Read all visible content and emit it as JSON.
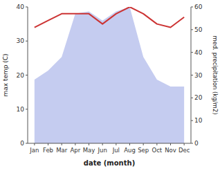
{
  "chart_data": {
    "type": "line",
    "xlabel": "date (month)",
    "ylabel": "max temp (C)",
    "y2label": "med. precipitation (kg/m2)",
    "categories": [
      "Jan",
      "Feb",
      "Mar",
      "Apr",
      "May",
      "Jun",
      "Jul",
      "Aug",
      "Sep",
      "Oct",
      "Nov",
      "Dec"
    ],
    "series": [
      {
        "type": "area",
        "color": "#c5ccf0",
        "axis": "y2",
        "values": [
          28,
          32,
          38,
          57,
          58,
          54,
          58,
          60,
          38,
          28,
          25,
          25
        ]
      },
      {
        "type": "line",
        "color": "#cc3333",
        "values": [
          34,
          36,
          38,
          38,
          38,
          35,
          38,
          40,
          38,
          35,
          34,
          37
        ]
      }
    ],
    "ylim": [
      0,
      40
    ],
    "yticks": [
      0,
      10,
      20,
      30,
      40
    ],
    "y2lim": [
      0,
      60
    ],
    "y2ticks": [
      0,
      10,
      20,
      30,
      40,
      50,
      60
    ],
    "grid": false
  }
}
